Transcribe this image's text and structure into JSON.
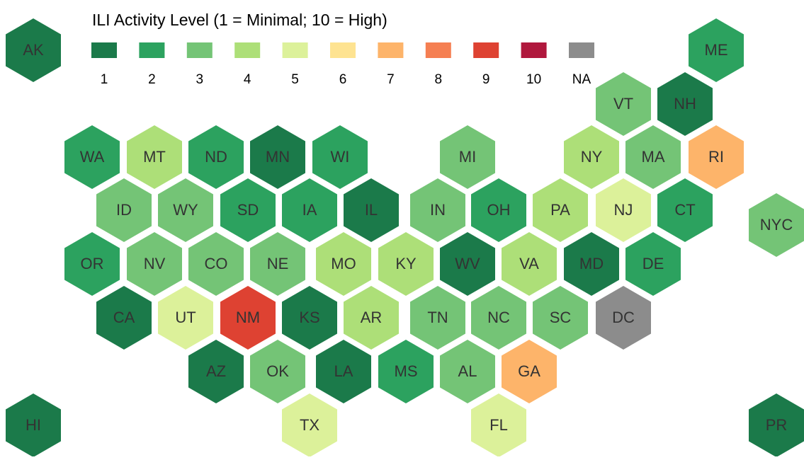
{
  "title": "ILI Activity Level  (1 = Minimal; 10 = High)",
  "legend": [
    {
      "label": "1",
      "color": "#1b7a4a"
    },
    {
      "label": "2",
      "color": "#2ca25f"
    },
    {
      "label": "3",
      "color": "#74c476"
    },
    {
      "label": "4",
      "color": "#addf78"
    },
    {
      "label": "5",
      "color": "#dcf19a"
    },
    {
      "label": "6",
      "color": "#fee391"
    },
    {
      "label": "7",
      "color": "#fdb46a"
    },
    {
      "label": "8",
      "color": "#f57f52"
    },
    {
      "label": "9",
      "color": "#de4232"
    },
    {
      "label": "10",
      "color": "#b0183d"
    },
    {
      "label": "NA",
      "color": "#8c8c8c"
    }
  ],
  "states": [
    {
      "name": "AK",
      "level": 1
    },
    {
      "name": "ME",
      "level": 2
    },
    {
      "name": "VT",
      "level": 3
    },
    {
      "name": "NH",
      "level": 1
    },
    {
      "name": "WA",
      "level": 2
    },
    {
      "name": "MT",
      "level": 4
    },
    {
      "name": "ND",
      "level": 2
    },
    {
      "name": "MN",
      "level": 1
    },
    {
      "name": "WI",
      "level": 2
    },
    {
      "name": "MI",
      "level": 3
    },
    {
      "name": "NY",
      "level": 4
    },
    {
      "name": "MA",
      "level": 3
    },
    {
      "name": "RI",
      "level": 7
    },
    {
      "name": "ID",
      "level": 3
    },
    {
      "name": "WY",
      "level": 3
    },
    {
      "name": "SD",
      "level": 2
    },
    {
      "name": "IA",
      "level": 2
    },
    {
      "name": "IL",
      "level": 1
    },
    {
      "name": "IN",
      "level": 3
    },
    {
      "name": "OH",
      "level": 2
    },
    {
      "name": "PA",
      "level": 4
    },
    {
      "name": "NJ",
      "level": 5
    },
    {
      "name": "CT",
      "level": 2
    },
    {
      "name": "NYC",
      "level": 3
    },
    {
      "name": "OR",
      "level": 2
    },
    {
      "name": "NV",
      "level": 3
    },
    {
      "name": "CO",
      "level": 3
    },
    {
      "name": "NE",
      "level": 3
    },
    {
      "name": "MO",
      "level": 4
    },
    {
      "name": "KY",
      "level": 4
    },
    {
      "name": "WV",
      "level": 1
    },
    {
      "name": "VA",
      "level": 4
    },
    {
      "name": "MD",
      "level": 1
    },
    {
      "name": "DE",
      "level": 2
    },
    {
      "name": "CA",
      "level": 1
    },
    {
      "name": "UT",
      "level": 5
    },
    {
      "name": "NM",
      "level": 9
    },
    {
      "name": "KS",
      "level": 1
    },
    {
      "name": "AR",
      "level": 4
    },
    {
      "name": "TN",
      "level": 3
    },
    {
      "name": "NC",
      "level": 3
    },
    {
      "name": "SC",
      "level": 3
    },
    {
      "name": "DC",
      "level": null
    },
    {
      "name": "AZ",
      "level": 1
    },
    {
      "name": "OK",
      "level": 3
    },
    {
      "name": "LA",
      "level": 1
    },
    {
      "name": "MS",
      "level": 2
    },
    {
      "name": "AL",
      "level": 3
    },
    {
      "name": "GA",
      "level": 7
    },
    {
      "name": "HI",
      "level": 1
    },
    {
      "name": "TX",
      "level": 5
    },
    {
      "name": "FL",
      "level": 5
    },
    {
      "name": "PR",
      "level": 1
    }
  ]
}
